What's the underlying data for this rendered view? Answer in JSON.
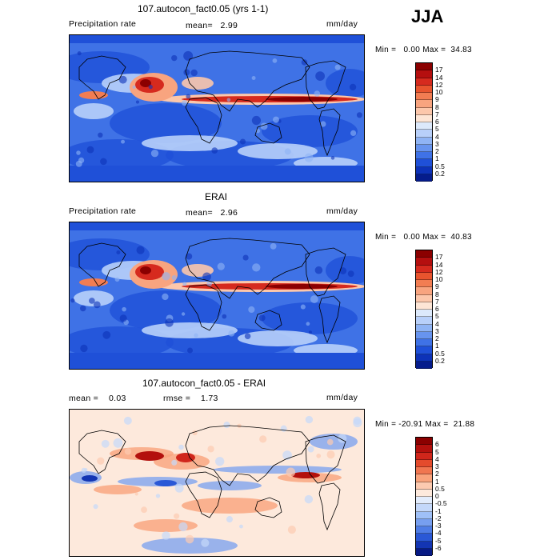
{
  "season": "JJA",
  "panels": [
    {
      "title": "107.autocon_fact0.05 (yrs 1-1)",
      "left_label": "Precipitation rate",
      "center_label": "mean=   2.99",
      "right_label": "mm/day",
      "minmax": "Min =   0.00 Max =  34.83",
      "levels": [
        "17",
        "14",
        "12",
        "10",
        "9",
        "8",
        "7",
        "6",
        "5",
        "4",
        "3",
        "2",
        "1",
        "0.5",
        "0.2"
      ],
      "colors": [
        "#8b0000",
        "#b50f0f",
        "#d62a1e",
        "#e8542e",
        "#f27d52",
        "#f8a47f",
        "#fcc7ab",
        "#fde5d5",
        "#dce9fb",
        "#b8d0fa",
        "#8fb4f5",
        "#6794ef",
        "#3f72e6",
        "#1f50d8",
        "#0d32b8",
        "#051c8c"
      ],
      "scheme": "precip"
    },
    {
      "title": "ERAI",
      "left_label": "Precipitation rate",
      "center_label": "mean=   2.96",
      "right_label": "mm/day",
      "minmax": "Min =   0.00 Max =  40.83",
      "levels": [
        "17",
        "14",
        "12",
        "10",
        "9",
        "8",
        "7",
        "6",
        "5",
        "4",
        "3",
        "2",
        "1",
        "0.5",
        "0.2"
      ],
      "colors": [
        "#8b0000",
        "#b50f0f",
        "#d62a1e",
        "#e8542e",
        "#f27d52",
        "#f8a47f",
        "#fcc7ab",
        "#fde5d5",
        "#dce9fb",
        "#b8d0fa",
        "#8fb4f5",
        "#6794ef",
        "#3f72e6",
        "#1f50d8",
        "#0d32b8",
        "#051c8c"
      ],
      "scheme": "precip"
    },
    {
      "title": "107.autocon_fact0.05 - ERAI",
      "left_label": "mean =    0.03",
      "center_label": "rmse =    1.73",
      "right_label": "mm/day",
      "minmax": "Min = -20.91 Max =  21.88",
      "levels": [
        "6",
        "5",
        "4",
        "3",
        "2",
        "1",
        "0.5",
        "0",
        "-0.5",
        "-1",
        "-2",
        "-3",
        "-4",
        "-5",
        "-6"
      ],
      "colors": [
        "#8b0000",
        "#b3100d",
        "#d0261b",
        "#e44b2c",
        "#f07650",
        "#f9a37c",
        "#fccab0",
        "#fde9dc",
        "#e2ecfc",
        "#c4d8fa",
        "#9fc0f7",
        "#779ff0",
        "#4f7de6",
        "#2a58d6",
        "#1335b3",
        "#071a85"
      ],
      "scheme": "diff"
    }
  ]
}
